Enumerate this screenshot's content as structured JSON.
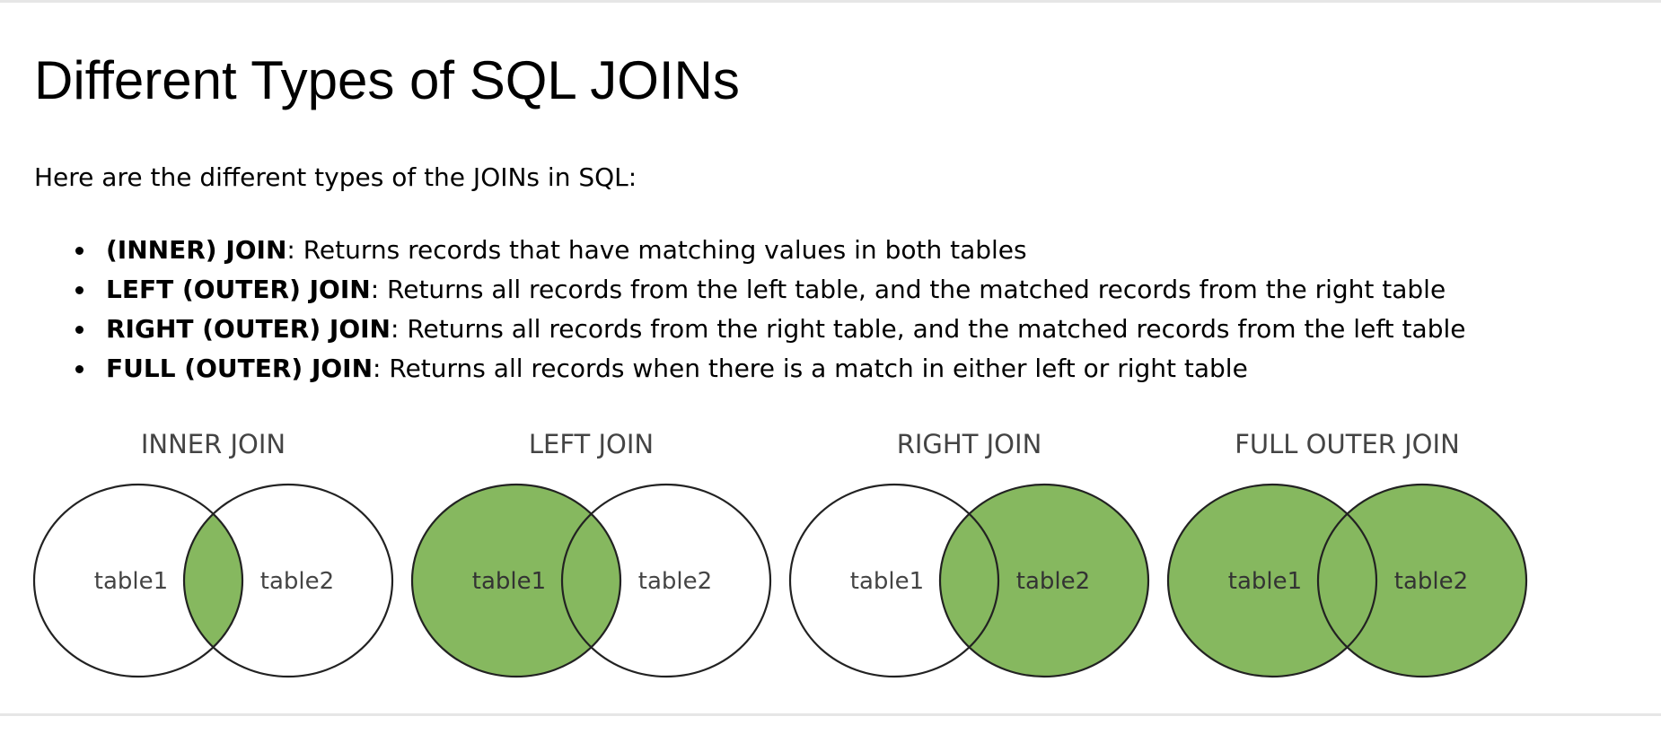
{
  "page": {
    "title": "Different Types of SQL JOINs",
    "intro": "Here are the different types of the JOINs in SQL:"
  },
  "join_types": [
    {
      "term": "(INNER) JOIN",
      "description": ": Returns records that have matching values in both tables"
    },
    {
      "term": "LEFT (OUTER) JOIN",
      "description": ": Returns all records from the left table, and the matched records from the right table"
    },
    {
      "term": "RIGHT (OUTER) JOIN",
      "description": ": Returns all records from the right table, and the matched records from the left table"
    },
    {
      "term": "FULL (OUTER) JOIN",
      "description": ": Returns all records when there is a match in either left or right table"
    }
  ],
  "diagram": {
    "colors": {
      "fill": "#86b85f",
      "stroke": "#222222",
      "label_on_white": "#444444",
      "label_on_fill": "#333333"
    },
    "venns": [
      {
        "title": "INNER JOIN",
        "left_label": "table1",
        "right_label": "table2",
        "shaded": "intersection"
      },
      {
        "title": "LEFT JOIN",
        "left_label": "table1",
        "right_label": "table2",
        "shaded": "left"
      },
      {
        "title": "RIGHT JOIN",
        "left_label": "table1",
        "right_label": "table2",
        "shaded": "right"
      },
      {
        "title": "FULL OUTER JOIN",
        "left_label": "table1",
        "right_label": "table2",
        "shaded": "both"
      }
    ]
  }
}
